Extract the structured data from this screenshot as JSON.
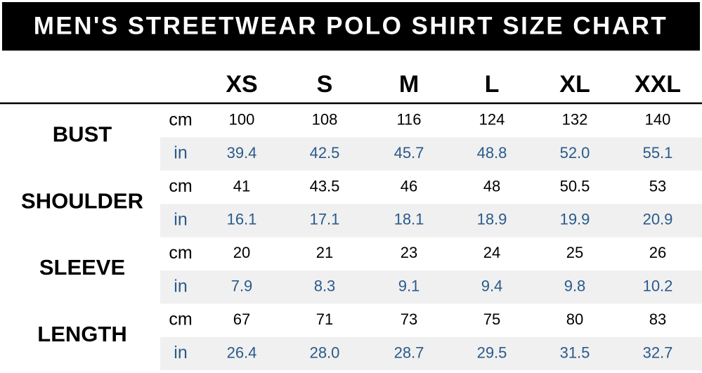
{
  "title": "MEN'S STREETWEAR POLO SHIRT SIZE CHART",
  "columns": [
    "XS",
    "S",
    "M",
    "L",
    "XL",
    "XXL"
  ],
  "rows": [
    {
      "label": "BUST",
      "cm_unit": "cm",
      "cm": [
        "100",
        "108",
        "116",
        "124",
        "132",
        "140"
      ],
      "in_unit": "in",
      "in": [
        "39.4",
        "42.5",
        "45.7",
        "48.8",
        "52.0",
        "55.1"
      ]
    },
    {
      "label": "SHOULDER",
      "cm_unit": "cm",
      "cm": [
        "41",
        "43.5",
        "46",
        "48",
        "50.5",
        "53"
      ],
      "in_unit": "in",
      "in": [
        "16.1",
        "17.1",
        "18.1",
        "18.9",
        "19.9",
        "20.9"
      ]
    },
    {
      "label": "SLEEVE",
      "cm_unit": "cm",
      "cm": [
        "20",
        "21",
        "23",
        "24",
        "25",
        "26"
      ],
      "in_unit": "in",
      "in": [
        "7.9",
        "8.3",
        "9.1",
        "9.4",
        "9.8",
        "10.2"
      ]
    },
    {
      "label": "LENGTH",
      "cm_unit": "cm",
      "cm": [
        "67",
        "71",
        "73",
        "75",
        "80",
        "83"
      ],
      "in_unit": "in",
      "in": [
        "26.4",
        "28.0",
        "28.7",
        "29.5",
        "31.5",
        "32.7"
      ]
    }
  ]
}
